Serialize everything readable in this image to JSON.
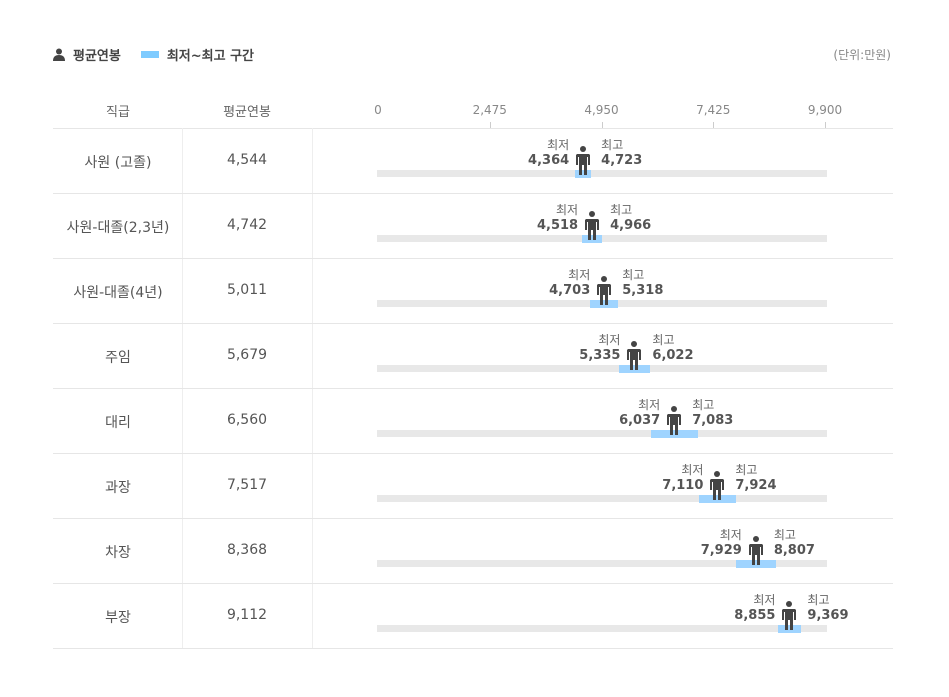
{
  "legend": {
    "avg_label": "평균연봉",
    "range_label": "최저~최고 구간",
    "range_color": "#7ecbff"
  },
  "unit": "(단위:만원)",
  "header": {
    "col1": "직급",
    "col2": "평균연봉"
  },
  "chart_data": {
    "type": "range-bar",
    "xlim": [
      0,
      9900
    ],
    "ticks": [
      "0",
      "2,475",
      "4,950",
      "7,425",
      "9,900"
    ],
    "min_label": "최저",
    "max_label": "최고",
    "rows": [
      {
        "rank": "사원 (고졸)",
        "avg": "4,544",
        "min": "4,364",
        "max": "4,723"
      },
      {
        "rank": "사원-대졸(2,3년)",
        "avg": "4,742",
        "min": "4,518",
        "max": "4,966"
      },
      {
        "rank": "사원-대졸(4년)",
        "avg": "5,011",
        "min": "4,703",
        "max": "5,318"
      },
      {
        "rank": "주임",
        "avg": "5,679",
        "min": "5,335",
        "max": "6,022"
      },
      {
        "rank": "대리",
        "avg": "6,560",
        "min": "6,037",
        "max": "7,083"
      },
      {
        "rank": "과장",
        "avg": "7,517",
        "min": "7,110",
        "max": "7,924"
      },
      {
        "rank": "차장",
        "avg": "8,368",
        "min": "7,929",
        "max": "8,807"
      },
      {
        "rank": "부장",
        "avg": "9,112",
        "min": "8,855",
        "max": "9,369"
      }
    ]
  }
}
